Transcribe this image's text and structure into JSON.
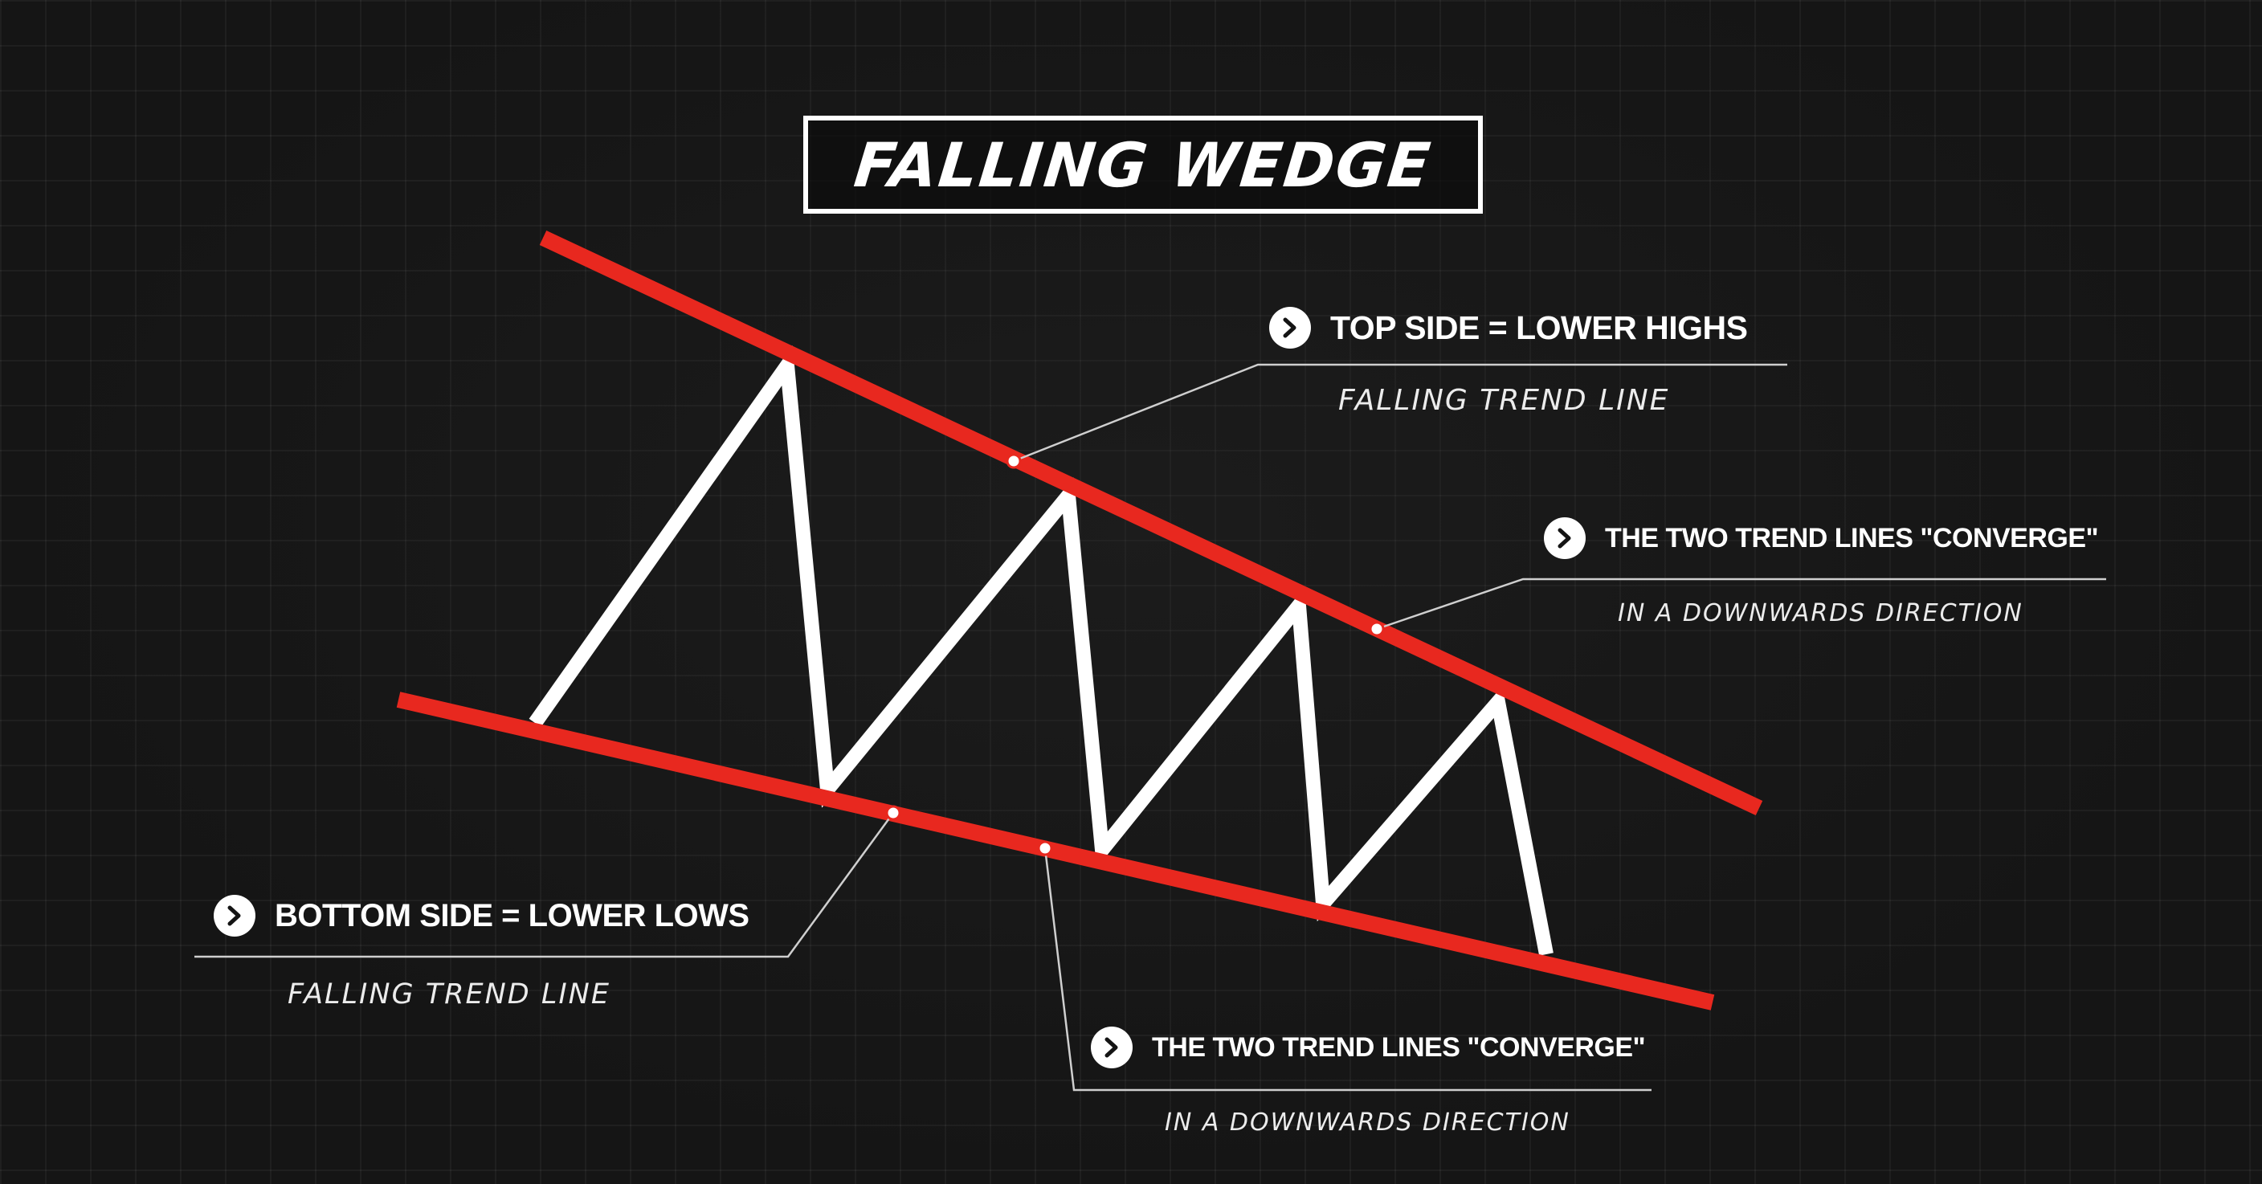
{
  "title": "FALLING WEDGE",
  "colors": {
    "background": "#151515",
    "trend_line": "#e8281f",
    "price_line": "#ffffff",
    "text": "#ffffff"
  },
  "icons": {
    "bullet": "chevron-right-icon"
  },
  "callouts": {
    "top_side": {
      "heading": "TOP SIDE = LOWER HIGHS",
      "subtitle": "FALLING TREND LINE"
    },
    "converge_upper": {
      "heading": "THE TWO TREND LINES \"CONVERGE\"",
      "subtitle": "IN A DOWNWARDS DIRECTION"
    },
    "bottom_side": {
      "heading": "BOTTOM SIDE = LOWER LOWS",
      "subtitle": "FALLING TREND LINE"
    },
    "converge_lower": {
      "heading": "THE TWO TREND LINES \"CONVERGE\"",
      "subtitle": "IN A DOWNWARDS DIRECTION"
    }
  }
}
